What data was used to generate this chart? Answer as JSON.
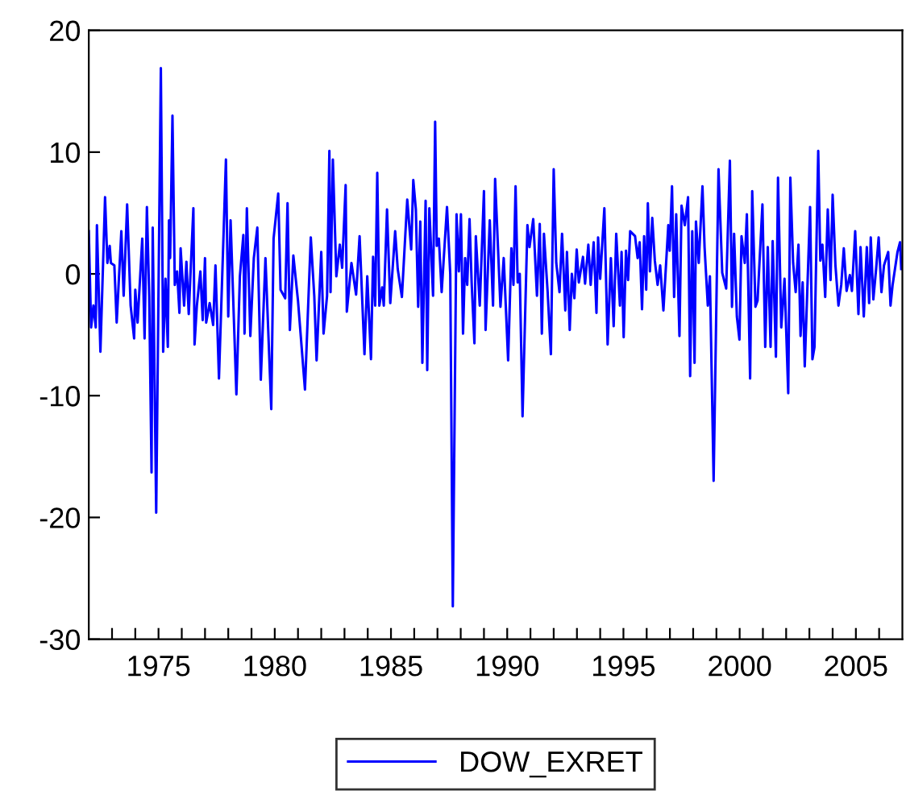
{
  "chart_data": {
    "type": "line",
    "x": [
      1972.0,
      1972.1,
      1972.2,
      1972.3,
      1972.35,
      1972.5,
      1972.7,
      1972.8,
      1972.9,
      1972.95,
      1973.1,
      1973.2,
      1973.4,
      1973.5,
      1973.65,
      1973.8,
      1973.95,
      1974.0,
      1974.1,
      1974.3,
      1974.4,
      1974.5,
      1974.6,
      1974.7,
      1974.75,
      1974.9,
      1975.1,
      1975.2,
      1975.3,
      1975.4,
      1975.45,
      1975.5,
      1975.6,
      1975.7,
      1975.8,
      1975.9,
      1975.95,
      1976.1,
      1976.2,
      1976.3,
      1976.5,
      1976.55,
      1976.65,
      1976.8,
      1976.9,
      1977.0,
      1977.05,
      1977.2,
      1977.35,
      1977.45,
      1977.6,
      1977.9,
      1978.0,
      1978.1,
      1978.35,
      1978.5,
      1978.65,
      1978.7,
      1978.8,
      1978.95,
      1979.1,
      1979.25,
      1979.4,
      1979.6,
      1979.85,
      1979.95,
      1980.15,
      1980.25,
      1980.45,
      1980.55,
      1980.65,
      1980.8,
      1981.0,
      1981.3,
      1981.55,
      1981.7,
      1981.8,
      1982.0,
      1982.1,
      1982.25,
      1982.35,
      1982.4,
      1982.5,
      1982.65,
      1982.8,
      1982.9,
      1983.05,
      1983.1,
      1983.3,
      1983.5,
      1983.65,
      1983.86,
      1983.98,
      1984.14,
      1984.23,
      1984.32,
      1984.41,
      1984.5,
      1984.62,
      1984.69,
      1984.83,
      1984.97,
      1985.18,
      1985.29,
      1985.47,
      1985.7,
      1985.87,
      1985.96,
      1986.07,
      1986.17,
      1986.26,
      1986.35,
      1986.49,
      1986.56,
      1986.65,
      1986.81,
      1986.9,
      1986.97,
      1987.06,
      1987.18,
      1987.41,
      1987.55,
      1987.66,
      1987.82,
      1987.92,
      1988.01,
      1988.1,
      1988.19,
      1988.28,
      1988.38,
      1988.47,
      1988.59,
      1988.65,
      1988.82,
      1989.0,
      1989.07,
      1989.25,
      1989.39,
      1989.48,
      1989.71,
      1989.85,
      1990.04,
      1990.18,
      1990.27,
      1990.36,
      1990.45,
      1990.54,
      1990.66,
      1990.87,
      1990.96,
      1991.12,
      1991.28,
      1991.4,
      1991.49,
      1991.58,
      1991.74,
      1991.88,
      1992.0,
      1992.11,
      1992.25,
      1992.36,
      1992.5,
      1992.57,
      1992.69,
      1992.78,
      1992.89,
      1992.99,
      1993.08,
      1993.26,
      1993.35,
      1993.49,
      1993.59,
      1993.72,
      1993.84,
      1993.91,
      1994.0,
      1994.18,
      1994.32,
      1994.46,
      1994.58,
      1994.69,
      1994.85,
      1994.92,
      1995.01,
      1995.11,
      1995.2,
      1995.29,
      1995.5,
      1995.61,
      1995.7,
      1995.8,
      1995.89,
      1995.98,
      1996.05,
      1996.14,
      1996.24,
      1996.35,
      1996.47,
      1996.58,
      1996.72,
      1996.93,
      1996.99,
      1997.09,
      1997.18,
      1997.27,
      1997.41,
      1997.5,
      1997.64,
      1997.78,
      1997.87,
      1997.96,
      1998.06,
      1998.12,
      1998.24,
      1998.4,
      1998.49,
      1998.63,
      1998.72,
      1998.88,
      1999.09,
      1999.25,
      1999.42,
      1999.58,
      1999.67,
      1999.76,
      1999.88,
      1999.99,
      2000.08,
      2000.22,
      2000.31,
      2000.45,
      2000.54,
      2000.68,
      2000.77,
      2000.98,
      2001.1,
      2001.21,
      2001.33,
      2001.42,
      2001.56,
      2001.65,
      2001.79,
      2001.93,
      2002.09,
      2002.18,
      2002.3,
      2002.41,
      2002.53,
      2002.62,
      2002.71,
      2002.8,
      2003.03,
      2003.13,
      2003.22,
      2003.38,
      2003.47,
      2003.56,
      2003.68,
      2003.79,
      2003.91,
      2004.0,
      2004.12,
      2004.25,
      2004.37,
      2004.48,
      2004.6,
      2004.74,
      2004.83,
      2004.97,
      2005.11,
      2005.2,
      2005.34,
      2005.47,
      2005.57,
      2005.64,
      2005.75,
      2005.87,
      2005.98,
      2006.1,
      2006.21,
      2006.39,
      2006.49,
      2006.58,
      2006.79,
      2006.9,
      2006.95
    ],
    "series": [
      {
        "name": "DOW_EXRET",
        "color": "#0000ff",
        "values": [
          3.5,
          -4.4,
          -2.6,
          -4.4,
          4.0,
          -6.4,
          6.3,
          0.9,
          2.3,
          0.9,
          0.7,
          -4.0,
          3.5,
          -1.8,
          5.7,
          -2.6,
          -5.3,
          -1.3,
          -4.0,
          2.9,
          -5.3,
          5.5,
          -1.8,
          -16.3,
          3.8,
          -19.6,
          16.9,
          -6.4,
          -0.4,
          -6.0,
          4.4,
          1.3,
          13.0,
          -0.9,
          0.2,
          -3.2,
          2.1,
          -2.6,
          1.0,
          -3.3,
          5.4,
          -5.8,
          -2.6,
          0.2,
          -3.8,
          1.3,
          -4.0,
          -2.4,
          -4.2,
          0.7,
          -8.6,
          9.4,
          -3.5,
          4.4,
          -9.9,
          -0.2,
          3.2,
          -4.9,
          5.4,
          -5.1,
          1.3,
          3.8,
          -8.7,
          1.3,
          -11.1,
          2.9,
          6.6,
          -1.3,
          -2.0,
          5.8,
          -4.6,
          1.5,
          -2.2,
          -9.5,
          3.0,
          -1.8,
          -7.1,
          1.8,
          -4.9,
          -1.8,
          10.1,
          -1.5,
          9.4,
          -0.2,
          2.4,
          0.5,
          7.3,
          -3.1,
          0.9,
          -1.7,
          3.1,
          -6.6,
          -0.2,
          -7.0,
          1.4,
          -2.6,
          8.3,
          -2.6,
          -1.1,
          -2.6,
          5.3,
          -2.4,
          3.5,
          0.4,
          -1.9,
          6.1,
          2.0,
          7.7,
          5.3,
          -2.7,
          4.3,
          -7.3,
          6.0,
          -7.9,
          5.4,
          -1.8,
          12.5,
          2.3,
          2.9,
          -1.5,
          5.5,
          0.0,
          -27.3,
          4.9,
          0.2,
          4.9,
          -4.9,
          1.3,
          -0.9,
          4.5,
          -0.7,
          -5.7,
          3.1,
          -2.6,
          6.8,
          -4.6,
          4.4,
          -2.6,
          7.8,
          -2.7,
          1.3,
          -7.1,
          2.1,
          -0.9,
          7.2,
          -0.7,
          0.0,
          -11.7,
          4.0,
          2.2,
          4.5,
          -1.8,
          4.1,
          -4.9,
          3.3,
          -1.5,
          -6.6,
          8.6,
          0.9,
          -1.5,
          3.3,
          -3.0,
          1.8,
          -4.6,
          0.0,
          -2.0,
          2.0,
          -0.7,
          1.4,
          -0.8,
          2.4,
          -0.9,
          2.6,
          -3.2,
          3.0,
          -0.4,
          5.4,
          -5.8,
          1.3,
          -4.3,
          3.3,
          -2.6,
          1.8,
          -5.2,
          1.9,
          -0.5,
          3.5,
          3.1,
          1.3,
          2.6,
          -2.9,
          3.1,
          -1.3,
          5.8,
          0.2,
          4.6,
          1.1,
          -0.9,
          0.7,
          -3.0,
          4.0,
          1.9,
          7.2,
          -1.9,
          4.9,
          -5.1,
          5.6,
          4.0,
          6.3,
          -8.4,
          3.5,
          -7.3,
          4.3,
          0.9,
          7.2,
          2.2,
          -2.6,
          -0.2,
          -17.0,
          8.6,
          0.1,
          -1.2,
          9.3,
          -2.7,
          3.3,
          -3.5,
          -5.4,
          3.1,
          0.9,
          4.9,
          -8.6,
          6.8,
          -2.7,
          -2.2,
          5.7,
          -6.0,
          2.2,
          -6.0,
          2.7,
          -6.8,
          7.9,
          -4.4,
          -0.4,
          -9.8,
          7.9,
          0.9,
          -1.5,
          2.4,
          -5.1,
          -0.7,
          -7.6,
          5.5,
          -7.0,
          -6.0,
          10.1,
          1.1,
          2.4,
          -1.9,
          5.3,
          -0.5,
          6.5,
          0.7,
          -2.6,
          -0.9,
          2.1,
          -1.4,
          -0.1,
          -1.4,
          3.5,
          -3.3,
          2.2,
          -3.5,
          2.2,
          -2.4,
          3.0,
          -2.1,
          0.4,
          3.0,
          -1.5,
          0.7,
          1.8,
          -2.6,
          -0.9,
          1.8,
          2.6,
          0.4
        ]
      }
    ],
    "xlim": [
      1972,
      2007
    ],
    "xticks": [
      {
        "value": 1973,
        "label": null
      },
      {
        "value": 1974,
        "label": null
      },
      1975,
      {
        "value": 1976,
        "label": null
      },
      {
        "value": 1977,
        "label": null
      },
      {
        "value": 1978,
        "label": null
      },
      {
        "value": 1979,
        "label": null
      },
      1980,
      {
        "value": 1981,
        "label": null
      },
      {
        "value": 1982,
        "label": null
      },
      {
        "value": 1983,
        "label": null
      },
      {
        "value": 1984,
        "label": null
      },
      1985,
      {
        "value": 1986,
        "label": null
      },
      {
        "value": 1987,
        "label": null
      },
      {
        "value": 1988,
        "label": null
      },
      {
        "value": 1989,
        "label": null
      },
      1990,
      {
        "value": 1991,
        "label": null
      },
      {
        "value": 1992,
        "label": null
      },
      {
        "value": 1993,
        "label": null
      },
      {
        "value": 1994,
        "label": null
      },
      1995,
      {
        "value": 1996,
        "label": null
      },
      {
        "value": 1997,
        "label": null
      },
      {
        "value": 1998,
        "label": null
      },
      {
        "value": 1999,
        "label": null
      },
      2000,
      {
        "value": 2001,
        "label": null
      },
      {
        "value": 2002,
        "label": null
      },
      {
        "value": 2003,
        "label": null
      },
      {
        "value": 2004,
        "label": null
      },
      2005,
      {
        "value": 2006,
        "label": null
      }
    ],
    "ylim": [
      -30,
      20
    ],
    "yticks": [
      -30,
      -20,
      -10,
      0,
      10,
      20
    ],
    "grid": false,
    "legend": "bottom",
    "line_style": "solid",
    "marker": "none"
  }
}
